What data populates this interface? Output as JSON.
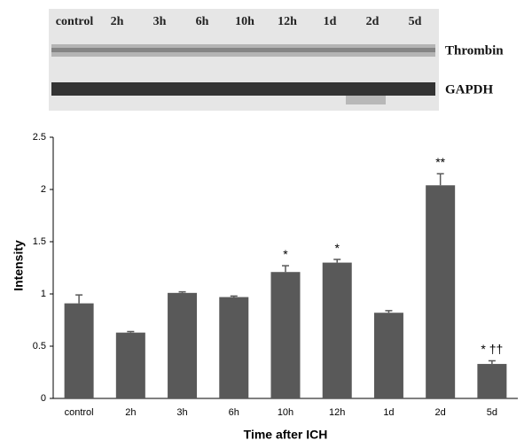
{
  "blot": {
    "lanes": [
      "control",
      "2h",
      "3h",
      "6h",
      "10h",
      "12h",
      "1d",
      "2d",
      "5d"
    ],
    "rows": [
      "Thrombin",
      "GAPDH"
    ]
  },
  "chart_data": {
    "type": "bar",
    "categories": [
      "control",
      "2h",
      "3h",
      "6h",
      "10h",
      "12h",
      "1d",
      "2d",
      "5d"
    ],
    "values": [
      0.91,
      0.63,
      1.01,
      0.97,
      1.21,
      1.3,
      0.82,
      2.04,
      0.33
    ],
    "errors": [
      0.08,
      0.01,
      0.01,
      0.01,
      0.06,
      0.03,
      0.02,
      0.11,
      0.03
    ],
    "annotations": [
      null,
      null,
      null,
      null,
      "*",
      "*",
      null,
      "**",
      "* ††"
    ],
    "color": "#595959",
    "ylim": [
      0,
      2.5
    ],
    "yticks": [
      0,
      0.5,
      1,
      1.5,
      2,
      2.5
    ],
    "ylabel": "Intensity",
    "xlabel": "Time after ICH"
  }
}
